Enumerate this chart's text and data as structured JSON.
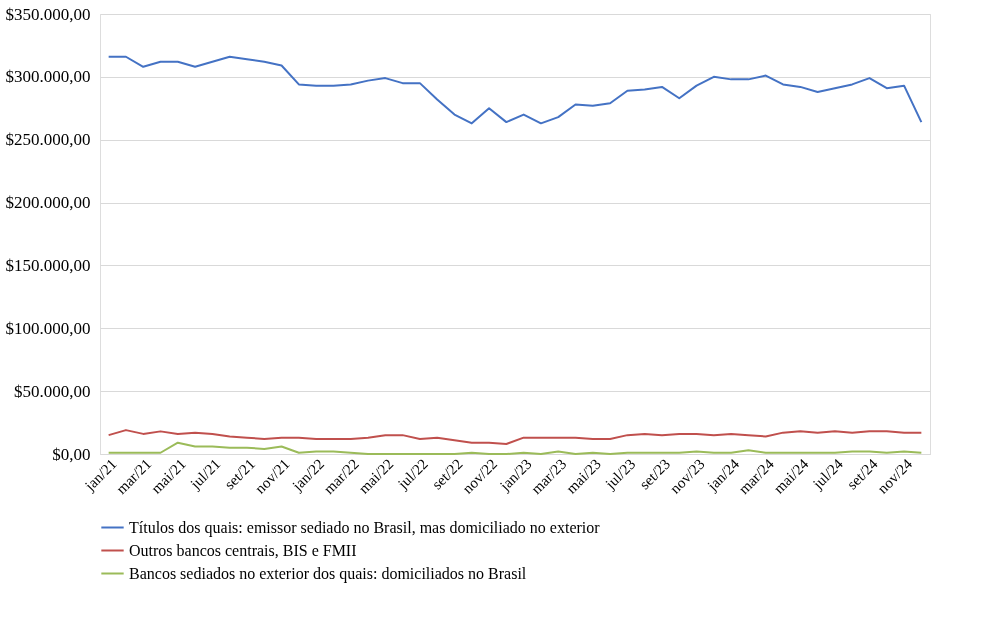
{
  "chart_data": {
    "type": "line",
    "categories": [
      "jan/21",
      null,
      "mar/21",
      null,
      "mai/21",
      null,
      "jul/21",
      null,
      "set/21",
      null,
      "nov/21",
      null,
      "jan/22",
      null,
      "mar/22",
      null,
      "mai/22",
      null,
      "jul/22",
      null,
      "set/22",
      null,
      "nov/22",
      null,
      "jan/23",
      null,
      "mar/23",
      null,
      "mai/23",
      null,
      "jul/23",
      null,
      "set/23",
      null,
      "nov/23",
      null,
      "jan/24",
      null,
      "mar/24",
      null,
      "mai/24",
      null,
      "jul/24",
      null,
      "set/24",
      null,
      "nov/24",
      null
    ],
    "series": [
      {
        "name": "Títulos dos quais: emissor sediado no Brasil, mas domiciliado no exterior",
        "color": "#4472c4",
        "values": [
          316000,
          316000,
          308000,
          312000,
          312000,
          308000,
          312000,
          316000,
          314000,
          312000,
          309000,
          294000,
          293000,
          293000,
          294000,
          297000,
          299000,
          295000,
          295000,
          282000,
          270000,
          263000,
          275000,
          264000,
          270000,
          263000,
          268000,
          278000,
          277000,
          279000,
          289000,
          290000,
          292000,
          283000,
          293000,
          300000,
          298000,
          298000,
          301000,
          294000,
          292000,
          288000,
          291000,
          294000,
          299000,
          291000,
          293000,
          264000
        ]
      },
      {
        "name": "Outros bancos centrais, BIS e FMII",
        "color": "#c0504d",
        "values": [
          15000,
          19000,
          16000,
          18000,
          16000,
          17000,
          16000,
          14000,
          13000,
          12000,
          13000,
          13000,
          12000,
          12000,
          12000,
          13000,
          15000,
          15000,
          12000,
          13000,
          11000,
          9000,
          9000,
          8000,
          13000,
          13000,
          13000,
          13000,
          12000,
          12000,
          15000,
          16000,
          15000,
          16000,
          16000,
          15000,
          16000,
          15000,
          14000,
          17000,
          18000,
          17000,
          18000,
          17000,
          18000,
          18000,
          17000,
          17000
        ]
      },
      {
        "name": "Bancos sediados no exterior dos quais: domiciliados no Brasil",
        "color": "#9bbb59",
        "values": [
          1000,
          1000,
          1000,
          1000,
          9000,
          6000,
          6000,
          5000,
          5000,
          4000,
          6000,
          1000,
          2000,
          2000,
          1000,
          0,
          0,
          0,
          0,
          0,
          0,
          1000,
          0,
          0,
          1000,
          0,
          2000,
          0,
          1000,
          0,
          1000,
          1000,
          1000,
          1000,
          2000,
          1000,
          1000,
          3000,
          1000,
          1000,
          1000,
          1000,
          1000,
          2000,
          2000,
          1000,
          2000,
          1000
        ]
      }
    ],
    "ylim": [
      0,
      350000
    ],
    "yticks": [
      {
        "value": 0,
        "label": "$0,00"
      },
      {
        "value": 50000,
        "label": "$50.000,00"
      },
      {
        "value": 100000,
        "label": "$100.000,00"
      },
      {
        "value": 150000,
        "label": "$150.000,00"
      },
      {
        "value": 200000,
        "label": "$200.000,00"
      },
      {
        "value": 250000,
        "label": "$250.000,00"
      },
      {
        "value": 300000,
        "label": "$300.000,00"
      },
      {
        "value": 350000,
        "label": "$350.000,00"
      }
    ],
    "grid": "y",
    "legend": "bottom",
    "line_style": "solid",
    "marker": "none"
  }
}
